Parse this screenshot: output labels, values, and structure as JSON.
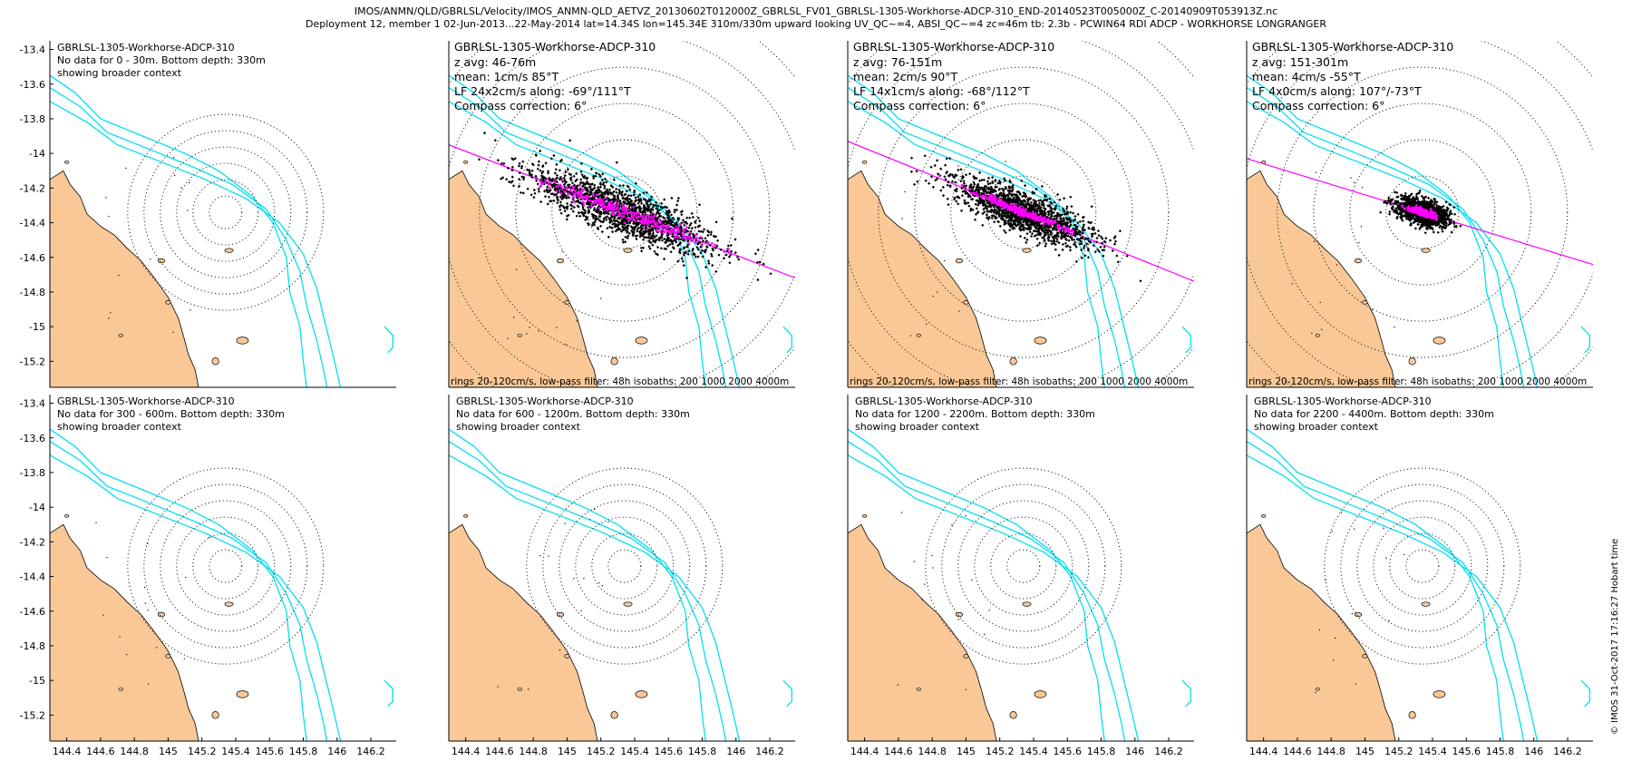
{
  "header": {
    "line1": "IMOS/ANMN/QLD/GBRLSL/Velocity/IMOS_ANMN-QLD_AETVZ_20130602T012000Z_GBRLSL_FV01_GBRLSL-1305-Workhorse-ADCP-310_END-20140523T005000Z_C-20140909T053913Z.nc",
    "line2": "Deployment 12, member 1 02-Jun-2013...22-May-2014 lat=14.34S lon=145.34E 310m/330m upward looking UV_QC~=4, ABSI_QC~=4 zc=46m tb: 2.3b - PCWIN64 RDI ADCP - WORKHORSE LONGRANGER"
  },
  "credit": "© IMOS 31-Oct-2017 17:16:27 Hobart time",
  "colors": {
    "land": "#f9c896",
    "isobath": "#00e0f0",
    "axis": "#000000",
    "mean_points": "#ff00ff"
  },
  "chart_data": [
    {
      "type": "scatter",
      "title": "GBRLSL-1305-Workhorse-ADCP-310",
      "info": [
        "No data for 0 - 30m. Bottom depth: 330m",
        "showing broader context"
      ],
      "has_data": false,
      "xlim": [
        144.3,
        146.35
      ],
      "ylim": [
        -15.35,
        -13.35
      ],
      "xticks": [
        144.4,
        144.6,
        144.8,
        145,
        145.2,
        145.4,
        145.6,
        145.8,
        146,
        146.2
      ],
      "yticks": [
        -13.4,
        -13.6,
        -13.8,
        -14,
        -14.2,
        -14.4,
        -14.6,
        -14.8,
        -15,
        -15.2
      ]
    },
    {
      "type": "scatter",
      "title": "GBRLSL-1305-Workhorse-ADCP-310",
      "info": [
        "z avg: 46-76m",
        "mean: 1cm/s 85°T",
        "LF 24x2cm/s along: -69°/111°T",
        "Compass correction: 6°"
      ],
      "footer": "rings 20-120cm/s, low-pass filter: 48h isobaths: 200 1000 2000 4000m",
      "has_data": true,
      "ring_radii_cm_s": [
        20,
        40,
        60,
        80,
        100,
        120
      ],
      "mean_speed_cm_s": 1,
      "mean_dir_deg_true": 85,
      "along_dir_deg_true": 111,
      "lf_major_cm_s": 24,
      "lf_minor_cm_s": 2,
      "scatter_major_cm_s": 60,
      "scatter_minor_cm_s": 10,
      "xlim": [
        144.3,
        146.35
      ],
      "ylim": [
        -15.35,
        -13.35
      ],
      "xticks": [
        144.4,
        144.6,
        144.8,
        145,
        145.2,
        145.4,
        145.6,
        145.8,
        146,
        146.2
      ],
      "yticks": [
        -13.4,
        -13.6,
        -13.8,
        -14,
        -14.2,
        -14.4,
        -14.6,
        -14.8,
        -15,
        -15.2
      ]
    },
    {
      "type": "scatter",
      "title": "GBRLSL-1305-Workhorse-ADCP-310",
      "info": [
        "z avg: 76-151m",
        "mean: 2cm/s 90°T",
        "LF 14x1cm/s along: -68°/112°T",
        "Compass correction: 6°"
      ],
      "footer": "rings 20-120cm/s, low-pass filter: 48h isobaths: 200 1000 2000 4000m",
      "has_data": true,
      "ring_radii_cm_s": [
        20,
        40,
        60,
        80,
        100,
        120
      ],
      "mean_speed_cm_s": 2,
      "mean_dir_deg_true": 90,
      "along_dir_deg_true": 112,
      "lf_major_cm_s": 14,
      "lf_minor_cm_s": 1,
      "scatter_major_cm_s": 45,
      "scatter_minor_cm_s": 8,
      "xlim": [
        144.3,
        146.35
      ],
      "ylim": [
        -15.35,
        -13.35
      ],
      "xticks": [
        144.4,
        144.6,
        144.8,
        145,
        145.2,
        145.4,
        145.6,
        145.8,
        146,
        146.2
      ],
      "yticks": [
        -13.4,
        -13.6,
        -13.8,
        -14,
        -14.2,
        -14.4,
        -14.6,
        -14.8,
        -15,
        -15.2
      ]
    },
    {
      "type": "scatter",
      "title": "GBRLSL-1305-Workhorse-ADCP-310",
      "info": [
        "z avg: 151-301m",
        "mean: 4cm/s -55°T",
        "LF 4x0cm/s along: 107°/-73°T",
        "Compass correction: 6°"
      ],
      "footer": "rings 20-120cm/s, low-pass filter: 48h isobaths: 200 1000 2000 4000m",
      "has_data": true,
      "ring_radii_cm_s": [
        20,
        40,
        60,
        80,
        100,
        120
      ],
      "mean_speed_cm_s": 4,
      "mean_dir_deg_true": -55,
      "along_dir_deg_true": 107,
      "lf_major_cm_s": 4,
      "lf_minor_cm_s": 0,
      "scatter_major_cm_s": 15,
      "scatter_minor_cm_s": 5,
      "xlim": [
        144.3,
        146.35
      ],
      "ylim": [
        -15.35,
        -13.35
      ],
      "xticks": [
        144.4,
        144.6,
        144.8,
        145,
        145.2,
        145.4,
        145.6,
        145.8,
        146,
        146.2
      ],
      "yticks": [
        -13.4,
        -13.6,
        -13.8,
        -14,
        -14.2,
        -14.4,
        -14.6,
        -14.8,
        -15,
        -15.2
      ]
    },
    {
      "type": "scatter",
      "title": "GBRLSL-1305-Workhorse-ADCP-310",
      "info": [
        "No data for 300 - 600m. Bottom depth: 330m",
        "showing broader context"
      ],
      "has_data": false,
      "xlim": [
        144.3,
        146.35
      ],
      "ylim": [
        -15.35,
        -13.35
      ],
      "xticks": [
        144.4,
        144.6,
        144.8,
        145,
        145.2,
        145.4,
        145.6,
        145.8,
        146,
        146.2
      ],
      "yticks": [
        -13.4,
        -13.6,
        -13.8,
        -14,
        -14.2,
        -14.4,
        -14.6,
        -14.8,
        -15,
        -15.2
      ]
    },
    {
      "type": "scatter",
      "title": "GBRLSL-1305-Workhorse-ADCP-310",
      "info": [
        "No data for 600 - 1200m. Bottom depth: 330m",
        "showing broader context"
      ],
      "has_data": false,
      "xlim": [
        144.3,
        146.35
      ],
      "ylim": [
        -15.35,
        -13.35
      ],
      "xticks": [
        144.4,
        144.6,
        144.8,
        145,
        145.2,
        145.4,
        145.6,
        145.8,
        146,
        146.2
      ],
      "yticks": [
        -13.4,
        -13.6,
        -13.8,
        -14,
        -14.2,
        -14.4,
        -14.6,
        -14.8,
        -15,
        -15.2
      ]
    },
    {
      "type": "scatter",
      "title": "GBRLSL-1305-Workhorse-ADCP-310",
      "info": [
        "No data for 1200 - 2200m. Bottom depth: 330m",
        "showing broader context"
      ],
      "has_data": false,
      "xlim": [
        144.3,
        146.35
      ],
      "ylim": [
        -15.35,
        -13.35
      ],
      "xticks": [
        144.4,
        144.6,
        144.8,
        145,
        145.2,
        145.4,
        145.6,
        145.8,
        146,
        146.2
      ],
      "yticks": [
        -13.4,
        -13.6,
        -13.8,
        -14,
        -14.2,
        -14.4,
        -14.6,
        -14.8,
        -15,
        -15.2
      ]
    },
    {
      "type": "scatter",
      "title": "GBRLSL-1305-Workhorse-ADCP-310",
      "info": [
        "No data for 2200 - 4400m. Bottom depth: 330m",
        "showing broader context"
      ],
      "has_data": false,
      "xlim": [
        144.3,
        146.35
      ],
      "ylim": [
        -15.35,
        -13.35
      ],
      "xticks": [
        144.4,
        144.6,
        144.8,
        145,
        145.2,
        145.4,
        145.6,
        145.8,
        146,
        146.2
      ],
      "yticks": [
        -13.4,
        -13.6,
        -13.8,
        -14,
        -14.2,
        -14.4,
        -14.6,
        -14.8,
        -15,
        -15.2
      ]
    }
  ]
}
